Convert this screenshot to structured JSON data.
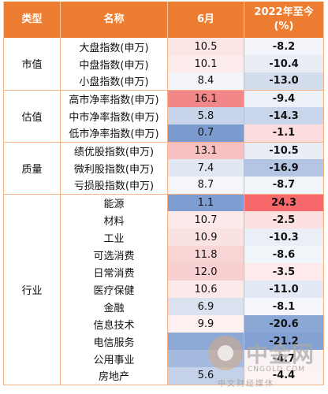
{
  "header": {
    "category": "类型",
    "name": "名称",
    "month": "6月",
    "ytd_line1": "2022年至今",
    "ytd_line2": "(%)"
  },
  "groups": [
    {
      "label": "市值",
      "rows": [
        {
          "name": "大盘指数(申万)",
          "month": "10.5",
          "ytd": "-8.2",
          "month_color": "#fbe5e5",
          "ytd_color": "#f3f5fa"
        },
        {
          "name": "中盘指数(申万)",
          "month": "10.1",
          "ytd": "-10.4",
          "month_color": "#fcecec",
          "ytd_color": "#e8edf6"
        },
        {
          "name": "小盘指数(申万)",
          "month": "8.4",
          "ytd": "-13.0",
          "month_color": "#f3f5fa",
          "ytd_color": "#d3ddee"
        }
      ]
    },
    {
      "label": "估值",
      "rows": [
        {
          "name": "高市净率指数(申万)",
          "month": "16.1",
          "ytd": "-9.4",
          "month_color": "#f2878a",
          "ytd_color": "#edf1f8"
        },
        {
          "name": "中市净率指数(申万)",
          "month": "5.8",
          "ytd": "-14.3",
          "month_color": "#c7d4ea",
          "ytd_color": "#c9d5ea"
        },
        {
          "name": "低市净率指数(申万)",
          "month": "0.7",
          "ytd": "-1.1",
          "month_color": "#7b9bcf",
          "ytd_color": "#fcdcdc"
        }
      ]
    },
    {
      "label": "质量",
      "rows": [
        {
          "name": "绩优股指数(申万)",
          "month": "13.1",
          "ytd": "-10.5",
          "month_color": "#f7c1c2",
          "ytd_color": "#e8edf6"
        },
        {
          "name": "微利股指数(申万)",
          "month": "7.4",
          "ytd": "-16.9",
          "month_color": "#e0e6f2",
          "ytd_color": "#b4c5e3"
        },
        {
          "name": "亏损股指数(申万)",
          "month": "8.7",
          "ytd": "-8.7",
          "month_color": "#f4f6fb",
          "ytd_color": "#f1f4f9"
        }
      ]
    },
    {
      "label": "行业",
      "rows": [
        {
          "name": "能源",
          "month": "1.1",
          "ytd": "24.3",
          "month_color": "#7e9dd0",
          "ytd_color": "#f8696b"
        },
        {
          "name": "材料",
          "month": "10.7",
          "ytd": "-2.5",
          "month_color": "#fce9e9",
          "ytd_color": "#fde1e1"
        },
        {
          "name": "工业",
          "month": "10.9",
          "ytd": "-10.3",
          "month_color": "#fbe2e2",
          "ytd_color": "#e9eef7"
        },
        {
          "name": "可选消费",
          "month": "11.8",
          "ytd": "-8.6",
          "month_color": "#f9d4d5",
          "ytd_color": "#f2f5fa"
        },
        {
          "name": "日常消费",
          "month": "12.0",
          "ytd": "-3.5",
          "month_color": "#f8d0d1",
          "ytd_color": "#feeaea"
        },
        {
          "name": "医疗保健",
          "month": "10.6",
          "ytd": "-11.0",
          "month_color": "#fce9e9",
          "ytd_color": "#e4eaf5"
        },
        {
          "name": "金融",
          "month": "6.9",
          "ytd": "-8.1",
          "month_color": "#dae2f0",
          "ytd_color": "#f4f6fb"
        },
        {
          "name": "信息技术",
          "month": "9.9",
          "ytd": "-20.6",
          "month_color": "#fdf1f1",
          "ytd_color": "#8aa7d5"
        },
        {
          "name": "电信服务",
          "month": "",
          "ytd": "-21.2",
          "month_color": "#8ea9d6",
          "ytd_color": "#83a1d3"
        },
        {
          "name": "公用事业",
          "month": "",
          "ytd": "-4.7",
          "month_color": "#a4badf",
          "ytd_color": "#fbf3f3"
        },
        {
          "name": "房地产",
          "month": "5.6",
          "ytd": "-4.4",
          "month_color": "#c4d1e9",
          "ytd_color": "#fdf3f3"
        }
      ]
    }
  ],
  "watermark": {
    "cn": "中金网",
    "en": "CNGOLD.COM",
    "sub": "中文财经媒体"
  }
}
